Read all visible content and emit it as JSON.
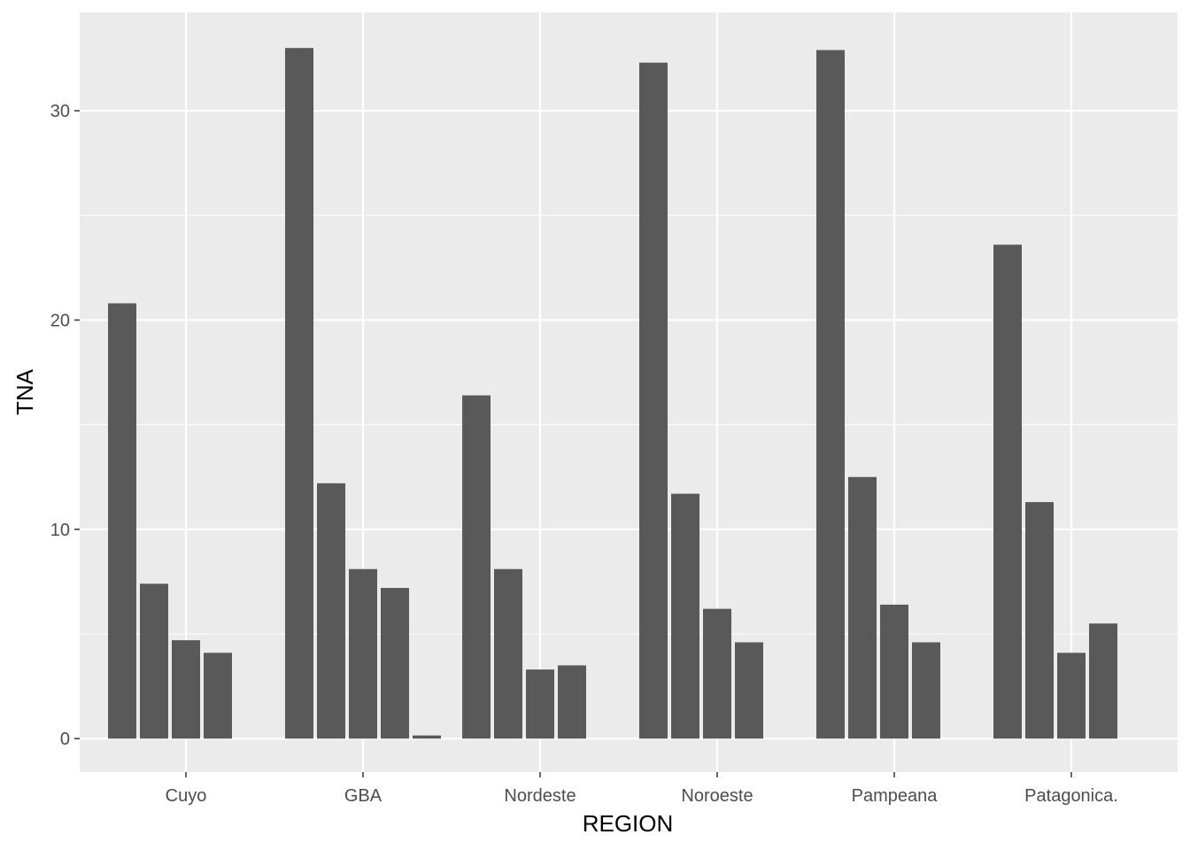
{
  "chart_data": {
    "type": "bar",
    "title": "",
    "xlabel": "REGION",
    "ylabel": "TNA",
    "categories": [
      "Cuyo",
      "GBA",
      "Nordeste",
      "Noroeste",
      "Pampeana",
      "Patagonica."
    ],
    "group_values": [
      [
        20.8,
        7.4,
        4.7,
        4.1
      ],
      [
        33.0,
        12.2,
        8.1,
        7.2,
        0.15
      ],
      [
        16.4,
        8.1,
        3.3,
        3.5
      ],
      [
        32.3,
        11.7,
        6.2,
        4.6
      ],
      [
        32.9,
        12.5,
        6.4,
        4.6
      ],
      [
        23.6,
        11.3,
        4.1,
        5.5
      ]
    ],
    "ylim": [
      -1.6,
      34.7
    ],
    "yticks": [
      0,
      10,
      20,
      30
    ],
    "grid": true,
    "legend": "none",
    "colors": {
      "bar": "#595959",
      "panel": "#ebebeb",
      "grid": "#ffffff",
      "tick_label": "#4d4d4d",
      "axis_title": "#000000"
    }
  }
}
